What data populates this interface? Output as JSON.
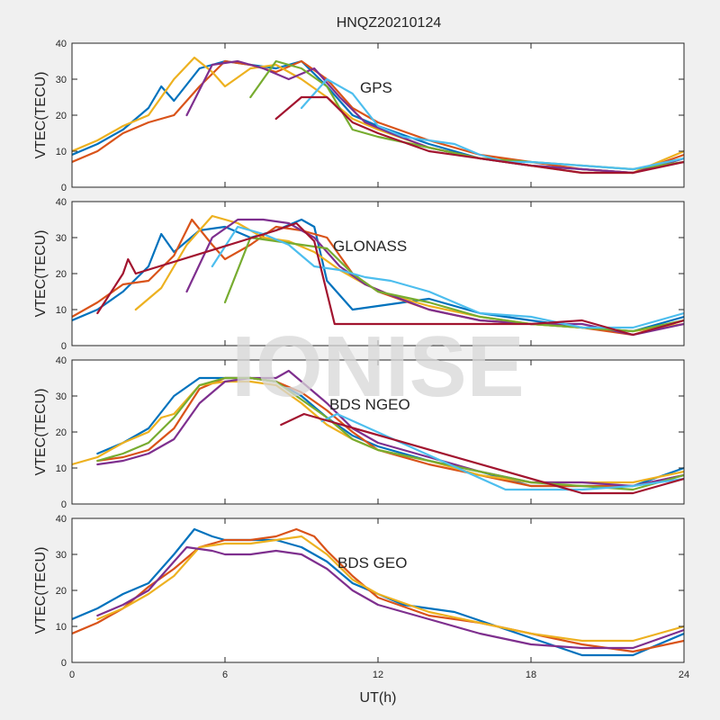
{
  "figure": {
    "title": "HNQZ20210124",
    "watermark": "IONISE",
    "xlabel": "UT(h)"
  },
  "colors": [
    "#0072bd",
    "#d95319",
    "#edb120",
    "#7e2f8e",
    "#77ac30",
    "#4dbeee",
    "#a2142f"
  ],
  "chart_data": [
    {
      "type": "line",
      "panel_label": "GPS",
      "ylabel": "VTEC(TECU)",
      "xlim": [
        0,
        24
      ],
      "ylim": [
        0,
        40
      ],
      "xticks": [
        "0",
        "6",
        "12",
        "18",
        "24"
      ],
      "yticks": [
        "0",
        "10",
        "20",
        "30",
        "40"
      ],
      "grid": false,
      "series": [
        {
          "x": [
            0,
            1,
            2,
            3,
            3.5,
            4,
            5,
            6,
            7,
            8,
            9,
            10,
            11,
            12,
            14,
            16,
            18,
            20,
            22,
            24
          ],
          "y": [
            9,
            12,
            16,
            22,
            28,
            24,
            33,
            35,
            34,
            33,
            35,
            28,
            20,
            17,
            12,
            8,
            6,
            5,
            4,
            8
          ]
        },
        {
          "x": [
            0,
            1,
            2,
            3,
            4,
            5,
            6,
            7,
            8,
            9,
            10,
            11,
            12,
            14,
            16,
            18,
            20,
            22,
            24
          ],
          "y": [
            7,
            10,
            15,
            18,
            20,
            28,
            35,
            34,
            32,
            35,
            30,
            22,
            18,
            13,
            9,
            7,
            5,
            4,
            9
          ]
        },
        {
          "x": [
            0,
            1,
            2,
            3,
            4,
            4.8,
            5.5,
            6,
            7,
            8,
            9,
            10,
            11,
            12,
            14,
            16,
            18,
            20,
            22,
            24
          ],
          "y": [
            10,
            13,
            17,
            20,
            30,
            36,
            32,
            28,
            33,
            34,
            30,
            25,
            19,
            16,
            11,
            8,
            6,
            4,
            4,
            10
          ]
        },
        {
          "x": [
            4.5,
            5.5,
            6.5,
            7.5,
            8.5,
            9.5,
            10.5,
            11.5,
            12.5,
            14,
            16,
            18,
            20,
            22,
            24
          ],
          "y": [
            20,
            34,
            35,
            33,
            30,
            33,
            25,
            18,
            15,
            11,
            8,
            6,
            5,
            4,
            8
          ]
        },
        {
          "x": [
            7,
            8,
            9,
            10,
            11,
            12,
            14,
            16,
            18,
            20,
            22,
            24
          ],
          "y": [
            25,
            35,
            33,
            28,
            16,
            14,
            11,
            8,
            7,
            6,
            5,
            7
          ]
        },
        {
          "x": [
            9,
            10,
            11,
            12,
            13,
            14,
            15,
            16,
            17,
            18,
            20,
            22,
            24
          ],
          "y": [
            22,
            30,
            26,
            17,
            14,
            13,
            12,
            9,
            7,
            7,
            6,
            5,
            8
          ]
        },
        {
          "x": [
            8,
            9,
            10,
            11,
            12,
            14,
            16,
            18,
            20,
            22,
            24
          ],
          "y": [
            19,
            25,
            25,
            18,
            15,
            10,
            8,
            6,
            4,
            4,
            7
          ]
        }
      ]
    },
    {
      "type": "line",
      "panel_label": "GLONASS",
      "ylabel": "VTEC(TECU)",
      "xlim": [
        0,
        24
      ],
      "ylim": [
        0,
        40
      ],
      "xticks": [
        "0",
        "6",
        "12",
        "18",
        "24"
      ],
      "yticks": [
        "0",
        "10",
        "20",
        "30",
        "40"
      ],
      "grid": false,
      "series": [
        {
          "x": [
            0,
            1,
            2,
            3,
            3.5,
            4,
            5,
            6,
            7,
            8,
            9,
            9.5,
            10,
            11,
            12,
            14,
            16,
            18,
            20,
            22,
            24
          ],
          "y": [
            7,
            10,
            15,
            22,
            31,
            26,
            32,
            33,
            30,
            32,
            35,
            33,
            18,
            10,
            11,
            13,
            9,
            7,
            5,
            4,
            8
          ]
        },
        {
          "x": [
            0,
            1,
            2,
            3,
            4,
            4.7,
            5.5,
            6,
            7,
            8,
            9,
            10,
            11,
            12,
            14,
            16,
            18,
            20,
            22,
            24
          ],
          "y": [
            8,
            12,
            17,
            18,
            25,
            35,
            28,
            24,
            28,
            33,
            32,
            30,
            20,
            15,
            10,
            7,
            6,
            5,
            3,
            7
          ]
        },
        {
          "x": [
            2.5,
            3.5,
            4.5,
            5.5,
            6.5,
            7.5,
            8.5,
            9.5,
            10.5,
            11.5,
            12.5,
            14,
            16,
            18,
            20,
            22,
            24
          ],
          "y": [
            10,
            16,
            28,
            36,
            34,
            30,
            29,
            26,
            21,
            17,
            14,
            11,
            8,
            6,
            5,
            4,
            6
          ]
        },
        {
          "x": [
            4.5,
            5.5,
            6.5,
            7.5,
            8.5,
            9.5,
            10.5,
            11.5,
            12.5,
            14,
            16,
            18,
            20,
            22,
            24
          ],
          "y": [
            15,
            30,
            35,
            35,
            34,
            30,
            22,
            17,
            14,
            10,
            7,
            6,
            6,
            3,
            6
          ]
        },
        {
          "x": [
            6,
            7,
            8,
            9,
            10,
            11,
            12,
            14,
            16,
            18,
            20,
            22,
            24
          ],
          "y": [
            12,
            30,
            29,
            28,
            27,
            20,
            15,
            12,
            8,
            6,
            5,
            4,
            7
          ]
        },
        {
          "x": [
            5.5,
            6.5,
            7.5,
            8.5,
            9.5,
            10.5,
            11.5,
            12.5,
            14,
            16,
            18,
            20,
            22,
            24
          ],
          "y": [
            22,
            33,
            31,
            28,
            22,
            21,
            19,
            18,
            15,
            9,
            8,
            5,
            5,
            9
          ]
        },
        {
          "x": [
            1,
            2,
            2.2,
            2.5,
            8,
            8.8,
            9.5,
            10.3,
            16,
            18,
            20,
            22,
            24
          ],
          "y": [
            9,
            20,
            24,
            20,
            32,
            34,
            29,
            6,
            6,
            6,
            7,
            3,
            7
          ]
        }
      ]
    },
    {
      "type": "line",
      "panel_label": "BDS NGEO",
      "ylabel": "VTEC(TECU)",
      "xlim": [
        0,
        24
      ],
      "ylim": [
        0,
        40
      ],
      "xticks": [
        "0",
        "6",
        "12",
        "18",
        "24"
      ],
      "yticks": [
        "0",
        "10",
        "20",
        "30",
        "40"
      ],
      "grid": false,
      "series": [
        {
          "x": [
            1,
            2,
            3,
            4,
            5,
            6,
            7,
            8,
            9,
            10,
            11,
            12,
            14,
            16,
            18,
            20,
            22,
            24
          ],
          "y": [
            14,
            17,
            21,
            30,
            35,
            35,
            35,
            34,
            30,
            24,
            19,
            16,
            12,
            9,
            5,
            5,
            5,
            10
          ]
        },
        {
          "x": [
            1,
            2,
            3,
            4,
            5,
            6,
            7,
            8,
            9,
            10,
            11,
            12,
            14,
            16,
            18,
            20,
            22,
            24
          ],
          "y": [
            12,
            13,
            15,
            21,
            32,
            35,
            35,
            34,
            31,
            26,
            20,
            15,
            11,
            8,
            5,
            5,
            5,
            8
          ]
        },
        {
          "x": [
            0,
            1,
            2,
            3,
            3.5,
            4,
            5,
            6,
            7,
            8,
            9,
            10,
            11,
            12,
            14,
            16,
            18,
            20,
            22,
            24
          ],
          "y": [
            11,
            13,
            17,
            20,
            24,
            25,
            33,
            34,
            34,
            33,
            28,
            22,
            18,
            15,
            12,
            8,
            6,
            6,
            6,
            9
          ]
        },
        {
          "x": [
            1,
            2,
            3,
            4,
            5,
            6,
            7,
            8,
            8.5,
            9,
            10,
            11,
            12,
            14,
            16,
            18,
            20,
            22,
            24
          ],
          "y": [
            11,
            12,
            14,
            18,
            28,
            34,
            35,
            35,
            37,
            34,
            28,
            21,
            17,
            13,
            9,
            6,
            6,
            5,
            8
          ]
        },
        {
          "x": [
            1,
            2,
            3,
            4,
            5,
            6,
            7,
            8,
            9,
            10,
            11,
            12,
            14,
            16,
            18,
            20,
            22,
            24
          ],
          "y": [
            12,
            14,
            17,
            24,
            33,
            35,
            35,
            34,
            29,
            24,
            18,
            15,
            12,
            9,
            6,
            5,
            4,
            8
          ]
        },
        {
          "x": [
            9.8,
            10.4,
            17,
            18,
            20,
            22,
            24
          ],
          "y": [
            23,
            25,
            4,
            4,
            4,
            5,
            7
          ]
        },
        {
          "x": [
            8.2,
            9.1,
            20,
            22,
            24
          ],
          "y": [
            22,
            25,
            3,
            3,
            7
          ]
        }
      ]
    },
    {
      "type": "line",
      "panel_label": "BDS GEO",
      "ylabel": "VTEC(TECU)",
      "xlim": [
        0,
        24
      ],
      "ylim": [
        0,
        40
      ],
      "xticks": [
        "0",
        "6",
        "12",
        "18",
        "24"
      ],
      "yticks": [
        "0",
        "10",
        "20",
        "30",
        "40"
      ],
      "grid": false,
      "series": [
        {
          "x": [
            0,
            1,
            2,
            3,
            4,
            4.8,
            5.5,
            6,
            7,
            8,
            9,
            10,
            11,
            12,
            13,
            14,
            15,
            20,
            22,
            24
          ],
          "y": [
            12,
            15,
            19,
            22,
            30,
            37,
            35,
            34,
            34,
            34,
            32,
            28,
            22,
            19,
            16,
            15,
            14,
            2,
            2,
            8
          ]
        },
        {
          "x": [
            0,
            1,
            2,
            3,
            4,
            5,
            6,
            7,
            8,
            8.8,
            9.5,
            10,
            11,
            12,
            14,
            16,
            18,
            20,
            22,
            24
          ],
          "y": [
            8,
            11,
            15,
            21,
            26,
            32,
            34,
            34,
            35,
            37,
            35,
            31,
            24,
            18,
            13,
            11,
            8,
            5,
            3,
            6
          ]
        },
        {
          "x": [
            1,
            2,
            3,
            4,
            5,
            6,
            7,
            8,
            9,
            10,
            11,
            12,
            14,
            16,
            18,
            20,
            22,
            24
          ],
          "y": [
            12,
            15,
            19,
            24,
            32,
            33,
            33,
            34,
            35,
            30,
            23,
            19,
            14,
            11,
            8,
            6,
            6,
            10
          ]
        },
        {
          "x": [
            1,
            2,
            3,
            4,
            4.5,
            5.5,
            6,
            7,
            8,
            9,
            10,
            11,
            12,
            14,
            16,
            18,
            20,
            22,
            24
          ],
          "y": [
            13,
            16,
            20,
            28,
            32,
            31,
            30,
            30,
            31,
            30,
            26,
            20,
            16,
            12,
            8,
            5,
            4,
            4,
            9
          ]
        }
      ]
    }
  ]
}
